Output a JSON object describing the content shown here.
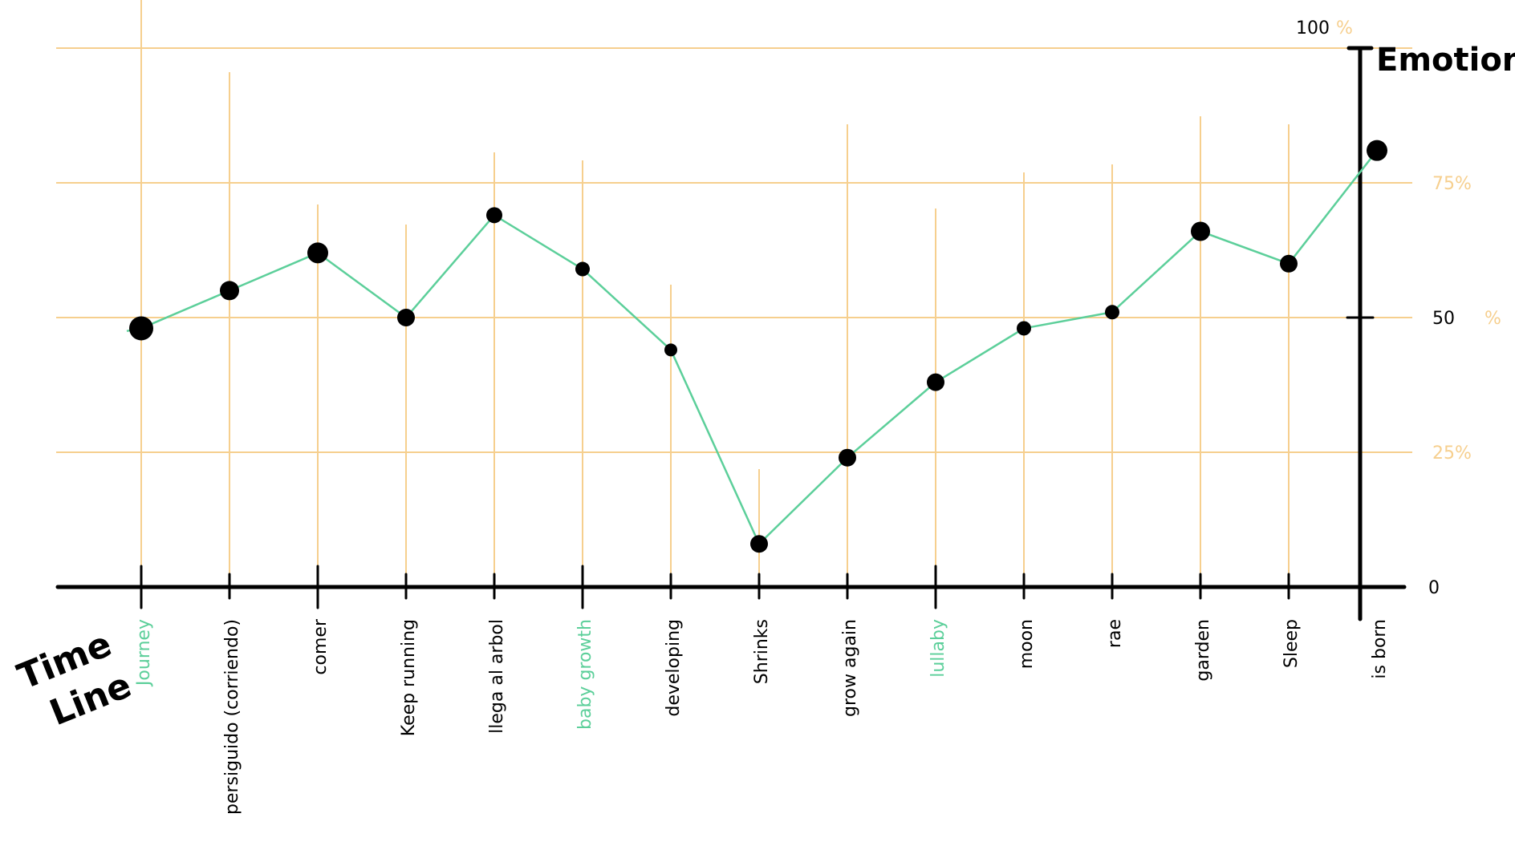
{
  "chart_data": {
    "type": "line",
    "ylabel": "Emotion",
    "xlabel_lines": [
      "Time",
      "Line"
    ],
    "ylim": [
      0,
      100
    ],
    "grid": true,
    "y_ticks": [
      {
        "value": 0,
        "label": "0",
        "color": "#000000"
      },
      {
        "value": 25,
        "label": "25%",
        "color": "#f6cf8e"
      },
      {
        "value": 50,
        "label": "50",
        "color": "#000000",
        "suffix": "%",
        "suffix_color": "#f6cf8e"
      },
      {
        "value": 75,
        "label": "75%",
        "color": "#f6cf8e"
      },
      {
        "value": 100,
        "label": "100",
        "color": "#000000",
        "suffix": "%",
        "suffix_color": "#f6cf8e"
      }
    ],
    "categories": [
      {
        "label": "Journey",
        "color": "#5ccf9a"
      },
      {
        "label": "persiguido (corriendo)",
        "color": "#000000"
      },
      {
        "label": "comer",
        "color": "#000000"
      },
      {
        "label": "Keep running",
        "color": "#000000"
      },
      {
        "label": "llega al arbol",
        "color": "#000000"
      },
      {
        "label": "baby growth",
        "color": "#5ccf9a"
      },
      {
        "label": "developing",
        "color": "#000000"
      },
      {
        "label": "Shrinks",
        "color": "#000000"
      },
      {
        "label": "grow again",
        "color": "#000000"
      },
      {
        "label": "lullaby",
        "color": "#5ccf9a"
      },
      {
        "label": "moon",
        "color": "#000000"
      },
      {
        "label": "rae",
        "color": "#000000"
      },
      {
        "label": "garden",
        "color": "#000000"
      },
      {
        "label": "Sleep",
        "color": "#000000"
      },
      {
        "label": "is born",
        "color": "#000000"
      }
    ],
    "series": [
      {
        "values": [
          48,
          55,
          62,
          50,
          69,
          59,
          44,
          8,
          24,
          38,
          48,
          51,
          66,
          60,
          81
        ]
      }
    ],
    "colors": {
      "line": "#5ccf9a",
      "grid": "#f6cf8e",
      "point": "#000000",
      "axis": "#000000"
    }
  }
}
